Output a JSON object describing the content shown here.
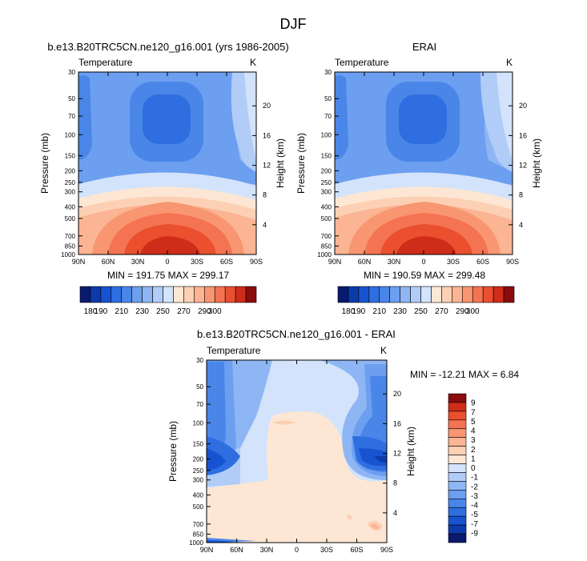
{
  "page": {
    "title": "DJF"
  },
  "colors": {
    "abs_scale": [
      "#0a1a6e",
      "#0d3aaa",
      "#1753d1",
      "#2e6ee0",
      "#4a86e8",
      "#6c9ff0",
      "#8eb6f4",
      "#b0ccf7",
      "#d3e3fb",
      "#fde7d4",
      "#fcd0b4",
      "#fbb494",
      "#f99672",
      "#f47352",
      "#ea4f2e",
      "#cf2c1a",
      "#8a0c0c"
    ],
    "diff_scale": [
      "#0a1a6e",
      "#0d3aaa",
      "#1753d1",
      "#2e6ee0",
      "#4a86e8",
      "#6c9ff0",
      "#8eb6f4",
      "#b0ccf7",
      "#d3e3fb",
      "#fde7d4",
      "#fcd0b4",
      "#fbb494",
      "#f99672",
      "#f47352",
      "#ea4f2e",
      "#cf2c1a",
      "#8a0c0c"
    ]
  },
  "chart_data": [
    {
      "type": "heatmap",
      "title": "b.e13.B20TRC5CN.ne120_g16.001 (yrs 1986-2005)",
      "left_label": "Temperature",
      "right_label": "K",
      "ylabel": "Pressure (mb)",
      "y2label": "Height (km)",
      "x_ticks": [
        "90N",
        "60N",
        "30N",
        "0",
        "30S",
        "60S",
        "90S"
      ],
      "y_ticks": [
        "30",
        "50",
        "70",
        "100",
        "150",
        "200",
        "250",
        "300",
        "400",
        "500",
        "700",
        "850",
        "1000"
      ],
      "y2_ticks": [
        "20",
        "16",
        "12",
        "8",
        "4"
      ],
      "stats": "MIN = 191.75   MAX = 299.17",
      "colorbar_labels": [
        "180",
        "190",
        "210",
        "230",
        "250",
        "270",
        "290",
        "300"
      ]
    },
    {
      "type": "heatmap",
      "title": "ERAI",
      "left_label": "Temperature",
      "right_label": "K",
      "ylabel": "Pressure (mb)",
      "y2label": "Height (km)",
      "x_ticks": [
        "90N",
        "60N",
        "30N",
        "0",
        "30S",
        "60S",
        "90S"
      ],
      "y_ticks": [
        "30",
        "50",
        "70",
        "100",
        "150",
        "200",
        "250",
        "300",
        "400",
        "500",
        "700",
        "850",
        "1000"
      ],
      "y2_ticks": [
        "20",
        "16",
        "12",
        "8",
        "4"
      ],
      "stats": "MIN = 190.59   MAX = 299.48",
      "colorbar_labels": [
        "180",
        "190",
        "210",
        "230",
        "250",
        "270",
        "290",
        "300"
      ]
    },
    {
      "type": "heatmap",
      "title": "b.e13.B20TRC5CN.ne120_g16.001 - ERAI",
      "left_label": "Temperature",
      "right_label": "K",
      "ylabel": "Pressure (mb)",
      "y2label": "Height (km)",
      "x_ticks": [
        "90N",
        "60N",
        "30N",
        "0",
        "30S",
        "60S",
        "90S"
      ],
      "y_ticks": [
        "30",
        "50",
        "70",
        "100",
        "150",
        "200",
        "250",
        "300",
        "400",
        "500",
        "700",
        "850",
        "1000"
      ],
      "y2_ticks": [
        "20",
        "16",
        "12",
        "8",
        "4"
      ],
      "stats": "MIN = -12.21   MAX =   6.84",
      "colorbar_labels": [
        "9",
        "7",
        "5",
        "4",
        "3",
        "2",
        "1",
        "0",
        "-1",
        "-2",
        "-3",
        "-4",
        "-5",
        "-7",
        "-9"
      ]
    }
  ]
}
